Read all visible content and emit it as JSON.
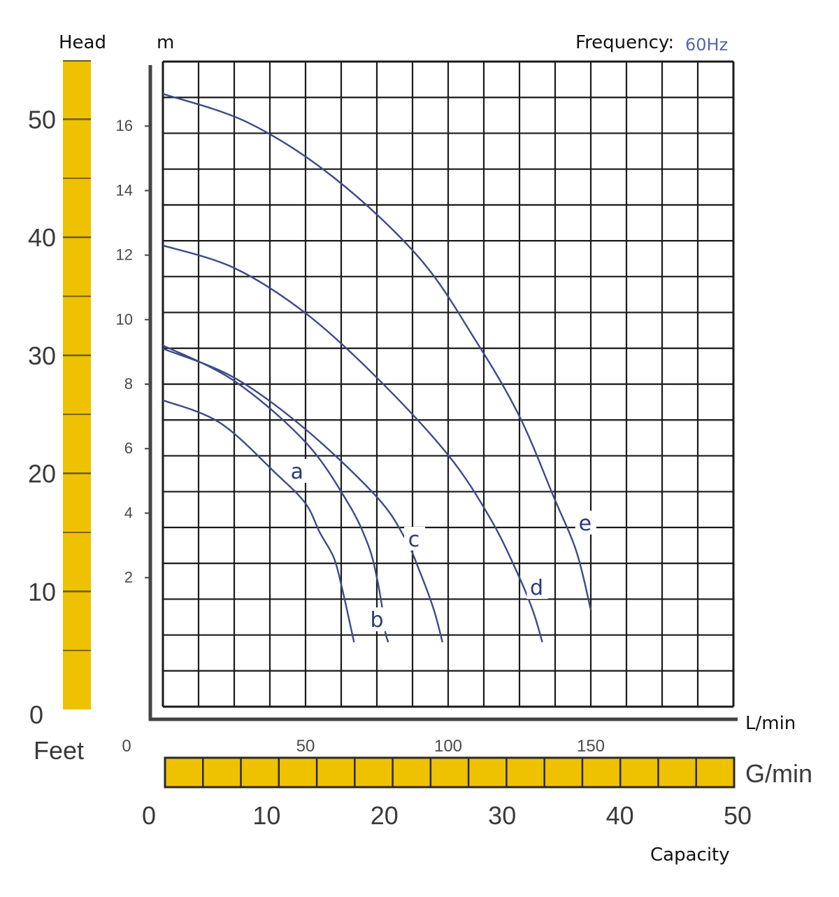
{
  "chart_data": {
    "type": "line",
    "title": "",
    "annotations": {
      "head_label": "Head",
      "head_unit": "m",
      "frequency_label": "Frequency:",
      "frequency_value": "60Hz",
      "flow_unit": "L/min",
      "feet_label": "Feet",
      "gmin_label": "G/min",
      "capacity_label": "Capacity"
    },
    "x_axis": {
      "unit": "L/min",
      "range": [
        0,
        200
      ],
      "ticks": [
        "0",
        "50",
        "100",
        "150"
      ]
    },
    "y_axis": {
      "unit": "m",
      "range": [
        -2,
        18
      ],
      "ticks": [
        "2",
        "4",
        "6",
        "8",
        "10",
        "12",
        "14",
        "16"
      ]
    },
    "feet_axis": {
      "unit": "Feet",
      "range": [
        0,
        55
      ],
      "ticks": [
        "0",
        "10",
        "20",
        "30",
        "40",
        "50"
      ]
    },
    "gmin_axis": {
      "unit": "G/min",
      "range": [
        0,
        50
      ],
      "ticks": [
        "0",
        "10",
        "20",
        "30",
        "40",
        "50"
      ]
    },
    "grid": true,
    "colors": {
      "curve": "#3c4a88",
      "grid": "#1a1a1a",
      "scale_bar": "#eec200",
      "frequency": "#5566b0"
    },
    "series": [
      {
        "name": "a",
        "label": "a",
        "x": [
          0,
          20,
          40,
          50,
          55,
          60,
          63,
          66,
          67
        ],
        "y": [
          7.5,
          6.8,
          5.2,
          4.3,
          3.4,
          2.6,
          1.6,
          0.4,
          0
        ]
      },
      {
        "name": "b",
        "label": "b",
        "x": [
          0,
          25,
          50,
          65,
          72,
          75,
          77,
          78,
          79
        ],
        "y": [
          9.2,
          8.1,
          6.2,
          4.3,
          3.0,
          2.0,
          1.0,
          0.3,
          0
        ]
      },
      {
        "name": "c",
        "label": "c",
        "x": [
          0,
          25,
          50,
          75,
          85,
          90,
          95,
          98
        ],
        "y": [
          9.1,
          8.2,
          6.6,
          4.5,
          3.2,
          2.2,
          1.0,
          0
        ]
      },
      {
        "name": "d",
        "label": "d",
        "x": [
          0,
          25,
          50,
          75,
          100,
          115,
          125,
          130,
          133
        ],
        "y": [
          12.3,
          11.6,
          10.2,
          8.2,
          5.8,
          3.8,
          2.0,
          0.9,
          0
        ]
      },
      {
        "name": "e",
        "label": "e",
        "x": [
          0,
          30,
          60,
          90,
          110,
          125,
          137,
          145,
          150
        ],
        "y": [
          17.0,
          16.1,
          14.4,
          11.9,
          9.3,
          7.0,
          4.5,
          2.8,
          1.0
        ]
      }
    ]
  }
}
